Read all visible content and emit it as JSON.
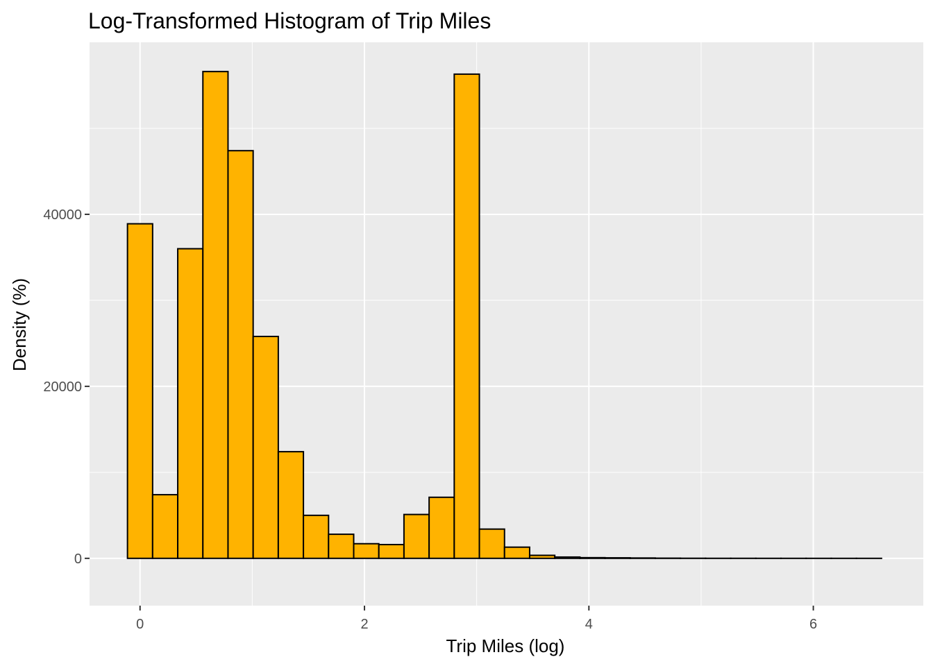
{
  "chart_data": {
    "type": "bar",
    "title": "Log-Transformed Histogram of Trip Miles",
    "xlabel": "Trip Miles (log)",
    "ylabel": "Density (%)",
    "xlim": [
      -0.45,
      6.98
    ],
    "ylim": [
      -5500,
      60000
    ],
    "x_ticks": [
      0,
      2,
      4,
      6
    ],
    "y_ticks": [
      0,
      20000,
      40000
    ],
    "x_minor": [
      1,
      3,
      5
    ],
    "y_minor": [
      10000,
      30000,
      50000
    ],
    "grid": true,
    "bar_color": "#FFB300",
    "bar_outline": "#000000",
    "panel_color": "#EBEBEB",
    "bins": [
      {
        "x0": -0.112,
        "x1": 0.112,
        "count": 38900
      },
      {
        "x0": 0.112,
        "x1": 0.336,
        "count": 7400
      },
      {
        "x0": 0.336,
        "x1": 0.56,
        "count": 36000
      },
      {
        "x0": 0.56,
        "x1": 0.784,
        "count": 56600
      },
      {
        "x0": 0.784,
        "x1": 1.008,
        "count": 47400
      },
      {
        "x0": 1.008,
        "x1": 1.232,
        "count": 25800
      },
      {
        "x0": 1.232,
        "x1": 1.456,
        "count": 12400
      },
      {
        "x0": 1.456,
        "x1": 1.68,
        "count": 5000
      },
      {
        "x0": 1.68,
        "x1": 1.904,
        "count": 2800
      },
      {
        "x0": 1.904,
        "x1": 2.128,
        "count": 1700
      },
      {
        "x0": 2.128,
        "x1": 2.352,
        "count": 1600
      },
      {
        "x0": 2.352,
        "x1": 2.576,
        "count": 5100
      },
      {
        "x0": 2.576,
        "x1": 2.8,
        "count": 7100
      },
      {
        "x0": 2.8,
        "x1": 3.024,
        "count": 56300
      },
      {
        "x0": 3.024,
        "x1": 3.248,
        "count": 3400
      },
      {
        "x0": 3.248,
        "x1": 3.472,
        "count": 1300
      },
      {
        "x0": 3.472,
        "x1": 3.696,
        "count": 350
      },
      {
        "x0": 3.696,
        "x1": 3.92,
        "count": 150
      },
      {
        "x0": 3.92,
        "x1": 4.144,
        "count": 80
      },
      {
        "x0": 4.144,
        "x1": 4.368,
        "count": 60
      },
      {
        "x0": 4.368,
        "x1": 4.592,
        "count": 40
      },
      {
        "x0": 4.592,
        "x1": 4.816,
        "count": 20
      },
      {
        "x0": 4.816,
        "x1": 5.04,
        "count": 10
      },
      {
        "x0": 5.04,
        "x1": 5.264,
        "count": 5
      },
      {
        "x0": 5.264,
        "x1": 5.488,
        "count": 5
      },
      {
        "x0": 5.488,
        "x1": 5.712,
        "count": 3
      },
      {
        "x0": 5.712,
        "x1": 5.936,
        "count": 2
      },
      {
        "x0": 5.936,
        "x1": 6.16,
        "count": 2
      },
      {
        "x0": 6.16,
        "x1": 6.384,
        "count": 1
      },
      {
        "x0": 6.384,
        "x1": 6.608,
        "count": 1
      }
    ]
  }
}
